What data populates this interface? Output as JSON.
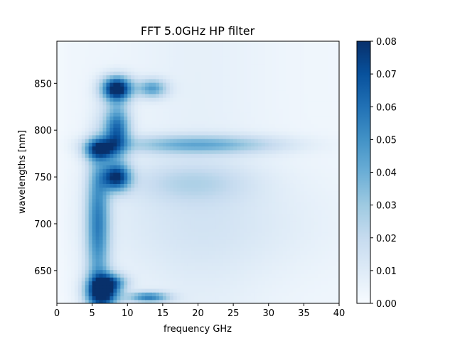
{
  "chart_data": {
    "type": "heatmap",
    "title": "FFT 5.0GHz HP filter",
    "xlabel": "frequency GHz",
    "ylabel": "wavelengths [nm]",
    "xlim": [
      0,
      40
    ],
    "ylim": [
      615,
      895
    ],
    "x_ticks": [
      0,
      5,
      10,
      15,
      20,
      25,
      30,
      35,
      40
    ],
    "y_ticks": [
      650,
      700,
      750,
      800,
      850
    ],
    "colormap": "Blues",
    "colorbar": {
      "range": [
        0.0,
        0.08
      ],
      "ticks": [
        "0.00",
        "0.01",
        "0.02",
        "0.03",
        "0.04",
        "0.05",
        "0.06",
        "0.07",
        "0.08"
      ]
    },
    "features": [
      {
        "x": 6.5,
        "y": 628,
        "sx": 1.6,
        "sy": 12,
        "v": 0.085
      },
      {
        "x": 8.0,
        "y": 638,
        "sx": 1.5,
        "sy": 6,
        "v": 0.03
      },
      {
        "x": 5.8,
        "y": 700,
        "sx": 1.2,
        "sy": 55,
        "v": 0.05
      },
      {
        "x": 8.5,
        "y": 750,
        "sx": 1.4,
        "sy": 10,
        "v": 0.07
      },
      {
        "x": 6.0,
        "y": 780,
        "sx": 1.5,
        "sy": 8,
        "v": 0.06
      },
      {
        "x": 8.5,
        "y": 800,
        "sx": 1.3,
        "sy": 20,
        "v": 0.06
      },
      {
        "x": 8.5,
        "y": 845,
        "sx": 1.5,
        "sy": 9,
        "v": 0.085
      },
      {
        "x": 13.5,
        "y": 845,
        "sx": 1.5,
        "sy": 7,
        "v": 0.04
      },
      {
        "x": 13.0,
        "y": 622,
        "sx": 2.0,
        "sy": 4,
        "v": 0.05
      },
      {
        "x": 20.0,
        "y": 785,
        "sx": 8.0,
        "sy": 7,
        "v": 0.035
      },
      {
        "x": 19.0,
        "y": 745,
        "sx": 6.0,
        "sy": 15,
        "v": 0.015
      },
      {
        "x": 22.0,
        "y": 700,
        "sx": 12.0,
        "sy": 40,
        "v": 0.008
      }
    ]
  }
}
